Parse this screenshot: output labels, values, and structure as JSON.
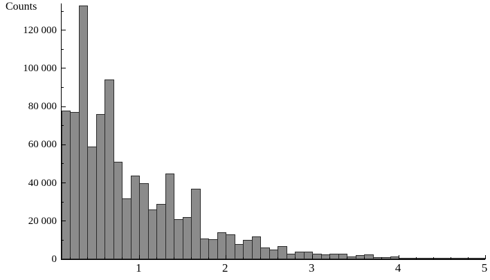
{
  "page": {
    "background": "#ffffff"
  },
  "chart_data": {
    "type": "bar",
    "subtype": "histogram",
    "title": "",
    "xlabel": "",
    "ylabel": "Counts",
    "grid": false,
    "legend": "none",
    "xlim": [
      0.1,
      5.0
    ],
    "ylim": [
      0,
      134000
    ],
    "bin_start": 0.1,
    "bin_width": 0.1,
    "values": [
      78000,
      77000,
      133000,
      59000,
      76000,
      94000,
      51000,
      32000,
      44000,
      40000,
      26000,
      29000,
      45000,
      21000,
      22000,
      37000,
      11000,
      10500,
      14000,
      13000,
      8000,
      10000,
      12000,
      6000,
      5000,
      7000,
      3000,
      4000,
      4000,
      3000,
      2500,
      3000,
      3000,
      1500,
      2000,
      2500,
      1200,
      1000,
      1500,
      900,
      800,
      700,
      600,
      500,
      450,
      400,
      350,
      300,
      300
    ],
    "x_ticks": [
      {
        "value": 1,
        "label": "1"
      },
      {
        "value": 2,
        "label": "2"
      },
      {
        "value": 3,
        "label": "3"
      },
      {
        "value": 4,
        "label": "4"
      },
      {
        "value": 5,
        "label": "5"
      }
    ],
    "y_ticks": [
      {
        "value": 0,
        "label": "0"
      },
      {
        "value": 20000,
        "label": "20 000"
      },
      {
        "value": 40000,
        "label": "40 000"
      },
      {
        "value": 60000,
        "label": "60 000"
      },
      {
        "value": 80000,
        "label": "80 000"
      },
      {
        "value": 100000,
        "label": "100 000"
      },
      {
        "value": 120000,
        "label": "120 000"
      }
    ],
    "x_minor_step": 0.2,
    "y_minor_step": 10000,
    "bar_fill": "#8b8b8b",
    "bar_edge": "#2a2a2a",
    "axis_color": "#000000"
  }
}
